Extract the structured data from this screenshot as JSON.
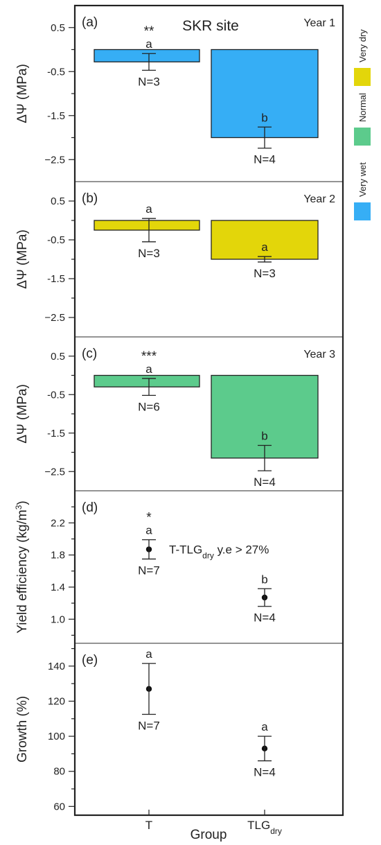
{
  "figure": {
    "site_title": "SKR site",
    "x_axis_title": "Group",
    "x_ticks": [
      {
        "text": "T",
        "sub": ""
      },
      {
        "text": "TLG",
        "sub": "dry"
      }
    ]
  },
  "legend": [
    {
      "label": "Very dry",
      "color": "#e3d60a"
    },
    {
      "label": "Normal",
      "color": "#5ccb8c"
    },
    {
      "label": "Very wet",
      "color": "#36aef5"
    }
  ],
  "chart_data": [
    {
      "type": "bar",
      "panel": "(a)",
      "year_label": "Year 1",
      "ylabel": "ΔΨ (MPa)",
      "ylim": [
        -3.0,
        1.0
      ],
      "yticks": [
        0.5,
        -0.5,
        -1.5,
        -2.5
      ],
      "yticklabels": [
        "0.5",
        "-0.5",
        "-1.5",
        "−2.5"
      ],
      "color": "#36aef5",
      "significance": "**",
      "categories": [
        "T",
        "TLGdry"
      ],
      "values": [
        -0.28,
        -2.0
      ],
      "errors": [
        0.19,
        0.24
      ],
      "letters": [
        "a",
        "b"
      ],
      "n_labels": [
        "N=3",
        "N=4"
      ]
    },
    {
      "type": "bar",
      "panel": "(b)",
      "year_label": "Year 2",
      "ylabel": "ΔΨ (MPa)",
      "ylim": [
        -3.0,
        1.0
      ],
      "yticks": [
        0.5,
        -0.5,
        -1.5,
        -2.5
      ],
      "yticklabels": [
        "0.5",
        "-0.5",
        "-1.5",
        "−2.5"
      ],
      "color": "#e3d60a",
      "significance": "",
      "categories": [
        "T",
        "TLGdry"
      ],
      "values": [
        -0.25,
        -1.0
      ],
      "errors": [
        0.3,
        0.07
      ],
      "letters": [
        "a",
        "a"
      ],
      "n_labels": [
        "N=3",
        "N=3"
      ]
    },
    {
      "type": "bar",
      "panel": "(c)",
      "year_label": "Year 3",
      "ylabel": "ΔΨ (MPa)",
      "ylim": [
        -3.0,
        1.0
      ],
      "yticks": [
        0.5,
        -0.5,
        -1.5,
        -2.5
      ],
      "yticklabels": [
        "0.5",
        "-0.5",
        "-1.5",
        "−2.5"
      ],
      "color": "#5ccb8c",
      "significance": "***",
      "categories": [
        "T",
        "TLGdry"
      ],
      "values": [
        -0.3,
        -2.15
      ],
      "errors": [
        0.22,
        0.33
      ],
      "letters": [
        "a",
        "b"
      ],
      "n_labels": [
        "N=6",
        "N=4"
      ]
    },
    {
      "type": "scatter",
      "panel": "(d)",
      "ylabel": "Yield efficiency (kg/m³)",
      "ylim": [
        0.7,
        2.6
      ],
      "yticks": [
        1.0,
        1.4,
        1.8,
        2.2
      ],
      "yticklabels": [
        "1.0",
        "1.4",
        "1.8",
        "2.2"
      ],
      "significance": "*",
      "categories": [
        "T",
        "TLGdry"
      ],
      "values": [
        1.87,
        1.27
      ],
      "errors": [
        0.12,
        0.11
      ],
      "letters": [
        "a",
        "b"
      ],
      "n_labels": [
        "N=7",
        "N=4"
      ],
      "annotation": {
        "prefix": "T-TLG",
        "sub": "dry",
        "suffix": " y.e > 27%"
      }
    },
    {
      "type": "scatter",
      "panel": "(e)",
      "ylabel": "Growth (%)",
      "ylim": [
        55,
        153
      ],
      "yticks": [
        60,
        80,
        100,
        120,
        140
      ],
      "yticklabels": [
        "60",
        "80",
        "100",
        "120",
        "140"
      ],
      "significance": "",
      "categories": [
        "T",
        "TLGdry"
      ],
      "values": [
        127,
        93
      ],
      "errors": [
        14.5,
        7
      ],
      "letters": [
        "a",
        "a"
      ],
      "n_labels": [
        "N=7",
        "N=4"
      ]
    }
  ]
}
